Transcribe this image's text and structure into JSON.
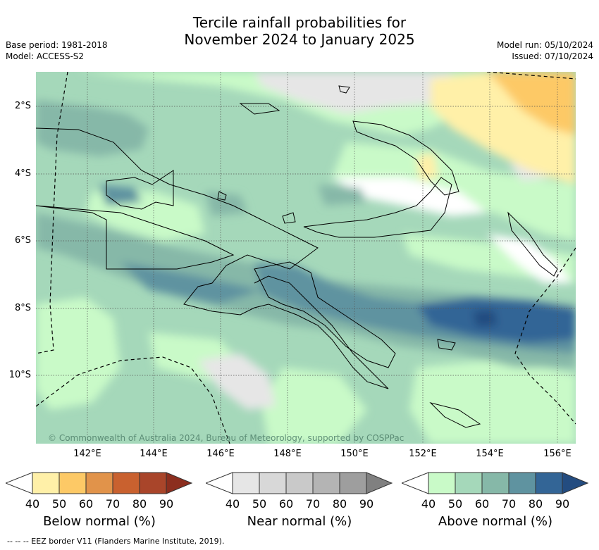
{
  "title_line1": "Tercile rainfall probabilities for",
  "title_line2": "November 2024 to January 2025",
  "base_period": "Base period: 1981-2018",
  "model": "Model: ACCESS-S2",
  "model_run": "Model run: 05/10/2024",
  "issued": "Issued: 07/10/2024",
  "credit": "© Commonwealth of Australia 2024, Bureau of Meteorology, supported by COSPPac",
  "lat_labels": [
    "2°S",
    "4°S",
    "6°S",
    "8°S",
    "10°S"
  ],
  "lon_labels": [
    "142°E",
    "144°E",
    "146°E",
    "148°E",
    "150°E",
    "152°E",
    "154°E",
    "156°E"
  ],
  "colorbars": [
    {
      "title": "Below normal (%)",
      "ticks": [
        "40",
        "50",
        "60",
        "70",
        "80",
        "90"
      ],
      "colors": [
        "#fff0a8",
        "#fdc966",
        "#e1934a",
        "#c9612f",
        "#a9452a",
        "#8c2e1e"
      ]
    },
    {
      "title": "Near normal (%)",
      "ticks": [
        "40",
        "50",
        "60",
        "70",
        "80",
        "90"
      ],
      "colors": [
        "#e6e6e6",
        "#d8d8d8",
        "#c9c9c9",
        "#b4b4b4",
        "#9e9e9e",
        "#808080"
      ]
    },
    {
      "title": "Above normal (%)",
      "ticks": [
        "40",
        "50",
        "60",
        "70",
        "80",
        "90"
      ],
      "colors": [
        "#c9fac8",
        "#a5d8ba",
        "#86b8a8",
        "#5f93a0",
        "#336596",
        "#234c80"
      ]
    }
  ],
  "footer": "-- -- -- EEZ border V11 (Flanders Marine Institute, 2019)."
}
